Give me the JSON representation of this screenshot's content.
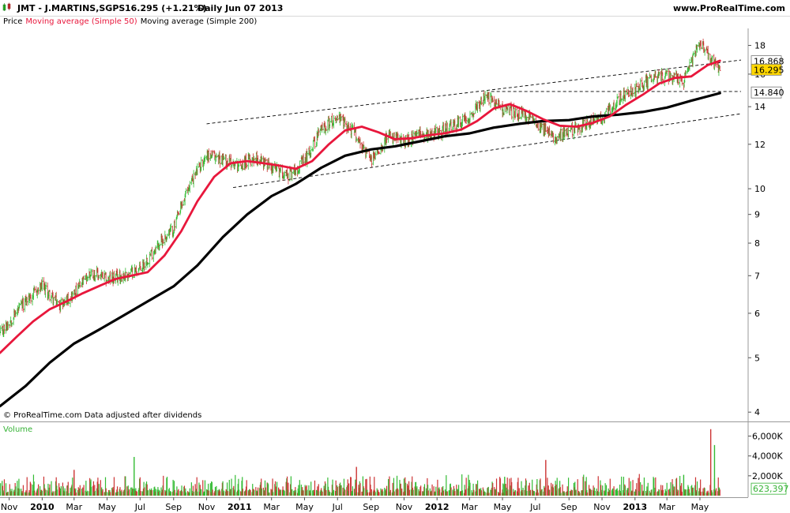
{
  "header": {
    "title": "JMT - J.MARTINS,SGPS",
    "change": "16.295 (+1.21%)",
    "period": "Daily  Jun 07 2013",
    "site": "www.ProRealTime.com"
  },
  "legend": {
    "price": "Price",
    "ma50": "Moving average (Simple 50)",
    "ma200": "Moving average (Simple 200)"
  },
  "footer": {
    "copyright": "© ProRealTime.com  Data adjusted after dividends"
  },
  "volume_panel": {
    "label": "Volume",
    "current_value": "623,397"
  },
  "colors": {
    "ma50": "#e8173c",
    "ma200": "#000000",
    "bull": "#33bb33",
    "bear": "#cc3333",
    "price_badge": "#ffd700"
  },
  "chart_data": [
    {
      "type": "line",
      "title": "JMT - J.MARTINS,SGPS Daily",
      "scale": "log",
      "ylim": [
        3.85,
        19.3
      ],
      "yticks": [
        4,
        5,
        6,
        7,
        8,
        9,
        10,
        12,
        14,
        16,
        18
      ],
      "ytick_labels": [
        "4",
        "5",
        "6",
        "7",
        "8",
        "9",
        "10",
        "12",
        "14",
        "16",
        "18"
      ],
      "x_range": [
        "2009-10-15",
        "2013-07-16"
      ],
      "x_labels": [
        {
          "label": "Nov",
          "date": "2009-11-01"
        },
        {
          "label": "2010",
          "date": "2010-01-01",
          "bold": true
        },
        {
          "label": "Mar",
          "date": "2010-03-01"
        },
        {
          "label": "May",
          "date": "2010-05-01"
        },
        {
          "label": "Jul",
          "date": "2010-07-01"
        },
        {
          "label": "Sep",
          "date": "2010-09-01"
        },
        {
          "label": "Nov",
          "date": "2010-11-01"
        },
        {
          "label": "2011",
          "date": "2011-01-01",
          "bold": true
        },
        {
          "label": "Mar",
          "date": "2011-03-01"
        },
        {
          "label": "May",
          "date": "2011-05-01"
        },
        {
          "label": "Jul",
          "date": "2011-07-01"
        },
        {
          "label": "Sep",
          "date": "2011-09-01"
        },
        {
          "label": "Nov",
          "date": "2011-11-01"
        },
        {
          "label": "2012",
          "date": "2012-01-01",
          "bold": true
        },
        {
          "label": "Mar",
          "date": "2012-03-01"
        },
        {
          "label": "May",
          "date": "2012-05-01"
        },
        {
          "label": "Jul",
          "date": "2012-07-01"
        },
        {
          "label": "Sep",
          "date": "2012-09-01"
        },
        {
          "label": "Nov",
          "date": "2012-11-01"
        },
        {
          "label": "2013",
          "date": "2013-01-01",
          "bold": true
        },
        {
          "label": "Mar",
          "date": "2013-03-01"
        },
        {
          "label": "May",
          "date": "2013-05-01"
        }
      ],
      "series": [
        {
          "name": "Price",
          "style": "ohlc",
          "points": [
            [
              "2009-10-15",
              5.5
            ],
            [
              "2009-11-01",
              5.8
            ],
            [
              "2009-12-01",
              6.3
            ],
            [
              "2010-01-01",
              6.7
            ],
            [
              "2010-02-01",
              6.2
            ],
            [
              "2010-03-01",
              6.5
            ],
            [
              "2010-04-01",
              7.1
            ],
            [
              "2010-05-01",
              6.9
            ],
            [
              "2010-06-01",
              7.0
            ],
            [
              "2010-07-01",
              7.2
            ],
            [
              "2010-08-01",
              7.9
            ],
            [
              "2010-09-01",
              8.5
            ],
            [
              "2010-10-01",
              10.2
            ],
            [
              "2010-11-01",
              11.5
            ],
            [
              "2010-12-01",
              11.3
            ],
            [
              "2011-01-01",
              11.0
            ],
            [
              "2011-02-01",
              11.4
            ],
            [
              "2011-03-01",
              10.9
            ],
            [
              "2011-04-01",
              10.6
            ],
            [
              "2011-05-01",
              11.2
            ],
            [
              "2011-06-01",
              12.8
            ],
            [
              "2011-07-01",
              13.4
            ],
            [
              "2011-08-01",
              12.6
            ],
            [
              "2011-09-01",
              11.2
            ],
            [
              "2011-10-01",
              12.4
            ],
            [
              "2011-11-01",
              12.1
            ],
            [
              "2011-12-01",
              12.5
            ],
            [
              "2012-01-01",
              12.6
            ],
            [
              "2012-02-01",
              12.9
            ],
            [
              "2012-03-01",
              13.5
            ],
            [
              "2012-04-01",
              14.6
            ],
            [
              "2012-05-01",
              13.9
            ],
            [
              "2012-06-01",
              13.6
            ],
            [
              "2012-07-01",
              13.2
            ],
            [
              "2012-08-01",
              12.4
            ],
            [
              "2012-09-01",
              12.6
            ],
            [
              "2012-10-01",
              13.1
            ],
            [
              "2012-11-01",
              13.3
            ],
            [
              "2012-12-01",
              14.4
            ],
            [
              "2013-01-01",
              15.0
            ],
            [
              "2013-02-01",
              15.7
            ],
            [
              "2013-03-01",
              15.9
            ],
            [
              "2013-04-01",
              15.6
            ],
            [
              "2013-05-01",
              18.2
            ],
            [
              "2013-05-20",
              17.1
            ],
            [
              "2013-06-07",
              16.295
            ]
          ]
        },
        {
          "name": "Moving average (Simple 50)",
          "color": "#e8173c",
          "points": [
            [
              "2009-10-15",
              5.1
            ],
            [
              "2009-11-15",
              5.45
            ],
            [
              "2009-12-15",
              5.8
            ],
            [
              "2010-01-15",
              6.1
            ],
            [
              "2010-02-15",
              6.3
            ],
            [
              "2010-03-15",
              6.5
            ],
            [
              "2010-04-15",
              6.7
            ],
            [
              "2010-05-15",
              6.9
            ],
            [
              "2010-06-15",
              7.0
            ],
            [
              "2010-07-15",
              7.1
            ],
            [
              "2010-08-15",
              7.6
            ],
            [
              "2010-09-15",
              8.4
            ],
            [
              "2010-10-15",
              9.5
            ],
            [
              "2010-11-15",
              10.5
            ],
            [
              "2010-12-15",
              11.1
            ],
            [
              "2011-01-15",
              11.2
            ],
            [
              "2011-02-15",
              11.1
            ],
            [
              "2011-03-15",
              11.0
            ],
            [
              "2011-04-15",
              10.85
            ],
            [
              "2011-05-15",
              11.2
            ],
            [
              "2011-06-15",
              12.0
            ],
            [
              "2011-07-15",
              12.7
            ],
            [
              "2011-08-15",
              12.9
            ],
            [
              "2011-09-15",
              12.6
            ],
            [
              "2011-10-15",
              12.25
            ],
            [
              "2011-11-15",
              12.3
            ],
            [
              "2011-12-15",
              12.45
            ],
            [
              "2012-01-15",
              12.55
            ],
            [
              "2012-02-15",
              12.75
            ],
            [
              "2012-03-15",
              13.2
            ],
            [
              "2012-04-15",
              13.9
            ],
            [
              "2012-05-15",
              14.15
            ],
            [
              "2012-06-15",
              13.75
            ],
            [
              "2012-07-15",
              13.3
            ],
            [
              "2012-08-15",
              12.95
            ],
            [
              "2012-09-15",
              12.9
            ],
            [
              "2012-10-15",
              13.1
            ],
            [
              "2012-11-15",
              13.45
            ],
            [
              "2012-12-15",
              14.1
            ],
            [
              "2013-01-15",
              14.7
            ],
            [
              "2013-02-15",
              15.4
            ],
            [
              "2013-03-15",
              15.75
            ],
            [
              "2013-04-15",
              15.85
            ],
            [
              "2013-05-15",
              16.6
            ],
            [
              "2013-06-07",
              16.9
            ]
          ]
        },
        {
          "name": "Moving average (Simple 200)",
          "color": "#000000",
          "points": [
            [
              "2009-10-15",
              4.1
            ],
            [
              "2009-12-01",
              4.45
            ],
            [
              "2010-01-15",
              4.9
            ],
            [
              "2010-03-01",
              5.3
            ],
            [
              "2010-04-15",
              5.6
            ],
            [
              "2010-06-01",
              5.95
            ],
            [
              "2010-07-15",
              6.3
            ],
            [
              "2010-09-01",
              6.7
            ],
            [
              "2010-10-15",
              7.3
            ],
            [
              "2010-12-01",
              8.2
            ],
            [
              "2011-01-15",
              9.0
            ],
            [
              "2011-03-01",
              9.7
            ],
            [
              "2011-04-15",
              10.2
            ],
            [
              "2011-06-01",
              10.9
            ],
            [
              "2011-07-15",
              11.45
            ],
            [
              "2011-09-01",
              11.75
            ],
            [
              "2011-10-15",
              11.9
            ],
            [
              "2011-12-01",
              12.15
            ],
            [
              "2012-01-15",
              12.4
            ],
            [
              "2012-03-01",
              12.55
            ],
            [
              "2012-04-15",
              12.85
            ],
            [
              "2012-06-01",
              13.05
            ],
            [
              "2012-07-15",
              13.2
            ],
            [
              "2012-09-01",
              13.25
            ],
            [
              "2012-10-15",
              13.45
            ],
            [
              "2012-12-01",
              13.55
            ],
            [
              "2013-01-15",
              13.7
            ],
            [
              "2013-03-01",
              13.95
            ],
            [
              "2013-04-15",
              14.35
            ],
            [
              "2013-06-07",
              14.8
            ]
          ]
        }
      ],
      "trend_lines": [
        {
          "style": "dashed",
          "points": [
            [
              "2010-11-01",
              13.05
            ],
            [
              "2013-07-16",
              16.95
            ]
          ]
        },
        {
          "style": "dashed",
          "points": [
            [
              "2010-12-20",
              10.05
            ],
            [
              "2013-07-16",
              13.6
            ]
          ]
        },
        {
          "style": "dashed",
          "points": [
            [
              "2012-04-10",
              14.9
            ],
            [
              "2013-07-16",
              14.9
            ]
          ]
        }
      ],
      "price_labels": [
        {
          "value": "16.868",
          "y": 16.868
        },
        {
          "value": "16.295",
          "y": 16.295,
          "highlight": true
        },
        {
          "value": "14.840",
          "y": 14.84
        }
      ]
    },
    {
      "type": "bar",
      "title": "Volume",
      "ylim": [
        0,
        7000000
      ],
      "yticks": [
        2000000,
        4000000,
        6000000
      ],
      "ytick_labels": [
        "2,000K",
        "4,000K",
        "6,000K"
      ],
      "last_value": "623,397",
      "notable_spikes": [
        {
          "date": "2010-03-01",
          "value": 2600000
        },
        {
          "date": "2010-06-20",
          "value": 3900000
        },
        {
          "date": "2011-08-05",
          "value": 2900000
        },
        {
          "date": "2012-05-05",
          "value": 1900000
        },
        {
          "date": "2012-07-20",
          "value": 3600000
        },
        {
          "date": "2013-04-01",
          "value": 2100000
        },
        {
          "date": "2013-05-21",
          "value": 6700000
        },
        {
          "date": "2013-05-28",
          "value": 5100000
        }
      ]
    }
  ]
}
